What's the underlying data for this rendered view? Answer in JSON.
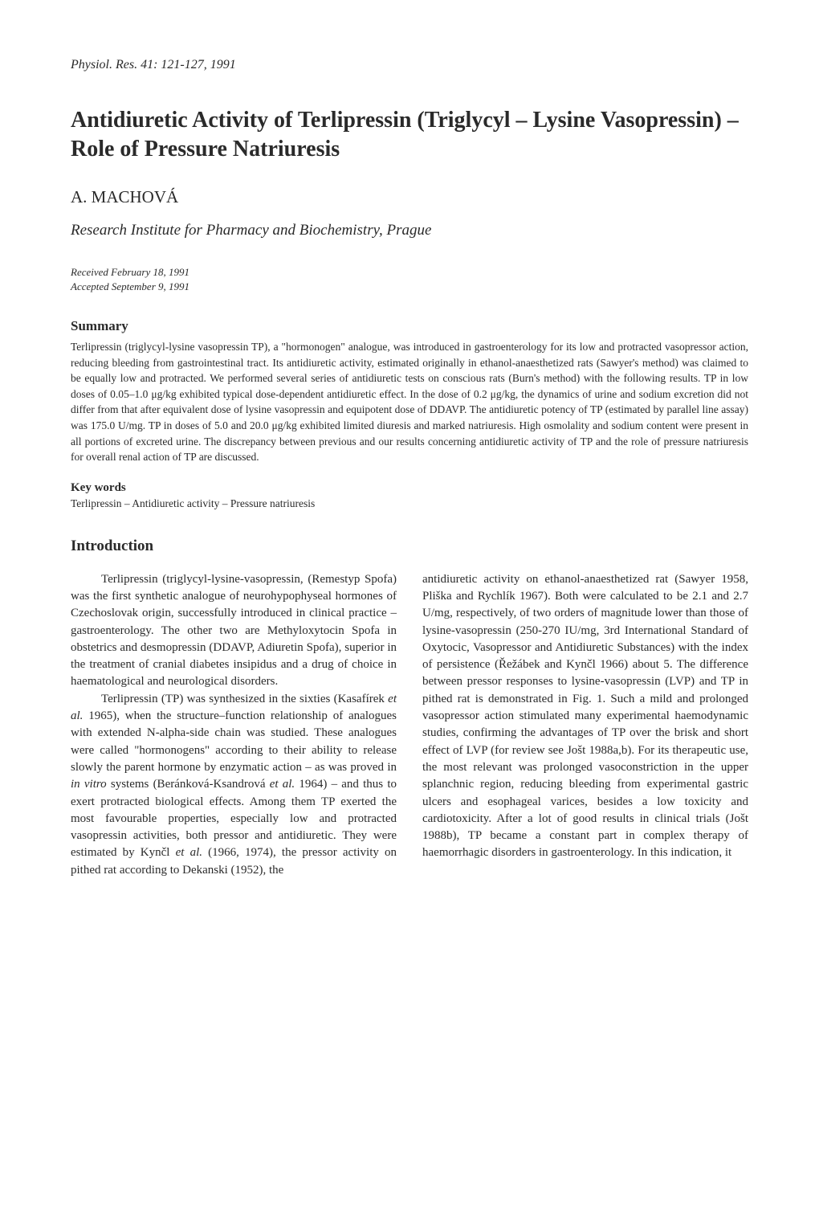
{
  "journal_header": "Physiol. Res. 41: 121-127, 1991",
  "title": "Antidiuretic Activity of Terlipressin (Triglycyl – Lysine Vasopressin) – Role of Pressure Natriuresis",
  "author": "A. MACHOVÁ",
  "affiliation": "Research Institute for Pharmacy and Biochemistry, Prague",
  "received": "Received February 18, 1991",
  "accepted": "Accepted September 9, 1991",
  "summary_heading": "Summary",
  "summary_text": "Terlipressin (triglycyl-lysine vasopressin TP), a \"hormonogen\" analogue, was introduced in gastroenterology for its low and protracted vasopressor action, reducing bleeding from gastrointestinal tract. Its antidiuretic activity, estimated originally in ethanol-anaesthetized rats (Sawyer's method) was claimed to be equally low and protracted. We performed several series of antidiuretic tests on conscious rats (Burn's method) with the following results. TP in low doses of 0.05–1.0 μg/kg exhibited typical dose-dependent antidiuretic effect. In the dose of 0.2 μg/kg, the dynamics of urine and sodium excretion did not differ from that after equivalent dose of lysine vasopressin and equipotent dose of DDAVP. The antidiuretic potency of TP (estimated by parallel line assay) was 175.0 U/mg. TP in doses of 5.0 and 20.0 μg/kg exhibited limited diuresis and marked natriuresis. High osmolality and sodium content were present in all portions of excreted urine. The discrepancy between previous and our results concerning antidiuretic activity of TP and the role of pressure natriuresis for overall renal action of TP are discussed.",
  "keywords_heading": "Key words",
  "keywords_text": "Terlipressin – Antidiuretic activity – Pressure natriuresis",
  "intro_heading": "Introduction",
  "col1_p1": "Terlipressin (triglycyl-lysine-vasopressin, (Remestyp Spofa) was the first synthetic analogue of neurohypophyseal hormones of Czechoslovak origin, successfully introduced in clinical practice – gastroenterology. The other two are Methyloxytocin Spofa in obstetrics and desmopressin (DDAVP, Adiuretin Spofa), superior in the treatment of cranial diabetes insipidus and a drug of choice in haematological and neurological disorders.",
  "col1_p2_a": "Terlipressin (TP) was synthesized in the sixties (Kasafírek ",
  "col1_p2_b": "et al.",
  "col1_p2_c": " 1965), when the structure–function relationship of analogues with extended N-alpha-side chain was studied. These analogues were called \"hormonogens\" according to their ability to release slowly the parent hormone by enzymatic action – as was proved in ",
  "col1_p2_d": "in vitro",
  "col1_p2_e": " systems (Beránková-Ksandrová ",
  "col1_p2_f": "et al.",
  "col1_p2_g": " 1964) – and thus to exert protracted biological effects. Among them TP exerted the most favourable properties, especially low and protracted vasopressin activities, both pressor and antidiuretic. They were estimated by Kynčl ",
  "col1_p2_h": "et al.",
  "col1_p2_i": " (1966, 1974), the pressor activity on pithed rat according to Dekanski (1952), the",
  "col2_p1": "antidiuretic activity on ethanol-anaesthetized rat (Sawyer 1958, Pliška and Rychlík 1967). Both were calculated to be 2.1 and 2.7 U/mg, respectively, of two orders of magnitude lower than those of lysine-vasopressin (250-270 IU/mg, 3rd International Standard of Oxytocic, Vasopressor and Antidiuretic Substances) with the index of persistence (Řežábek and Kynčl 1966) about 5. The difference between pressor responses to lysine-vasopressin (LVP) and TP in pithed rat is demonstrated in Fig. 1. Such a mild and prolonged vasopressor action stimulated many experimental haemodynamic studies, confirming the advantages of TP over the brisk and short effect of LVP (for review see Jošt 1988a,b). For its therapeutic use, the most relevant was prolonged vasoconstriction in the upper splanchnic region, reducing bleeding from experimental gastric ulcers and esophageal varices, besides a low toxicity and cardiotoxicity. After a lot of good results in clinical trials (Jošt 1988b), TP became a constant part in complex therapy of haemorrhagic disorders in gastroenterology. In this indication, it"
}
